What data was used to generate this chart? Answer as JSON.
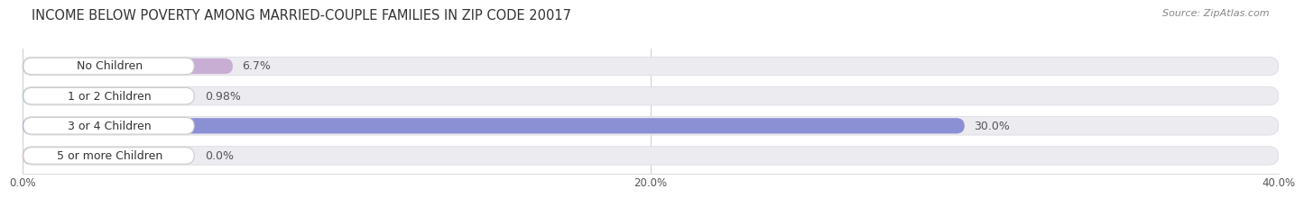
{
  "title": "INCOME BELOW POVERTY AMONG MARRIED-COUPLE FAMILIES IN ZIP CODE 20017",
  "source": "Source: ZipAtlas.com",
  "categories": [
    "No Children",
    "1 or 2 Children",
    "3 or 4 Children",
    "5 or more Children"
  ],
  "values": [
    6.7,
    0.98,
    30.0,
    0.0
  ],
  "bar_colors": [
    "#c9aed4",
    "#6ecdc8",
    "#8b8fd4",
    "#f4a8c0"
  ],
  "value_labels": [
    "6.7%",
    "0.98%",
    "30.0%",
    "0.0%"
  ],
  "xlim": [
    0,
    40
  ],
  "xticks": [
    0,
    20,
    40
  ],
  "xticklabels": [
    "0.0%",
    "20.0%",
    "40.0%"
  ],
  "bar_height": 0.62,
  "background_color": "#f5f5f8",
  "bar_bg_color": "#ebebf0",
  "title_fontsize": 10.5,
  "label_fontsize": 9,
  "value_fontsize": 9
}
